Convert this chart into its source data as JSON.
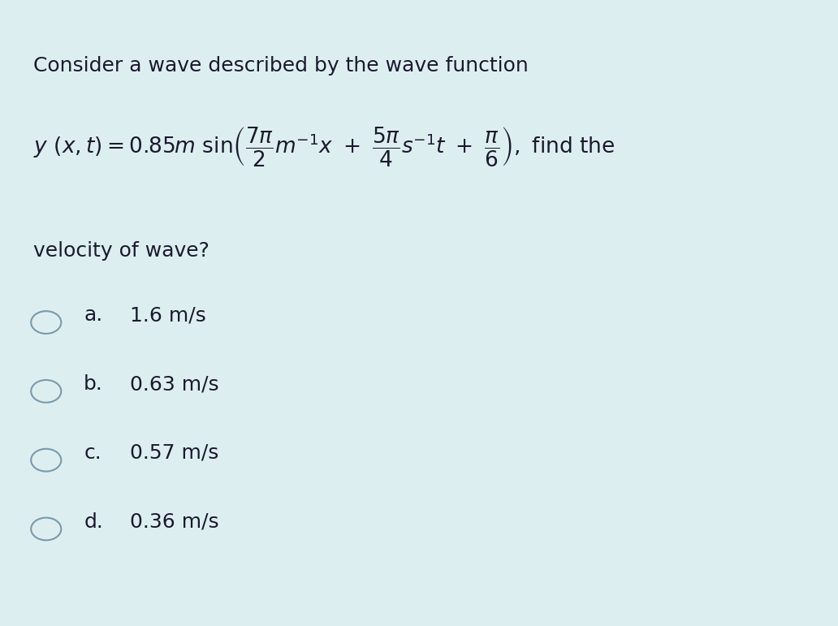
{
  "background_color": "#ddeef0",
  "text_color": "#1a1a2e",
  "title_line1": "Consider a wave described by the wave function",
  "velocity_text": "velocity of wave?",
  "options": [
    {
      "label": "a.",
      "value": "1.6 m/s"
    },
    {
      "label": "b.",
      "value": "0.63 m/s"
    },
    {
      "label": "c.",
      "value": "0.57 m/s"
    },
    {
      "label": "d.",
      "value": "0.36 m/s"
    }
  ],
  "fig_width": 10.32,
  "fig_height": 7.71,
  "dpi": 100
}
